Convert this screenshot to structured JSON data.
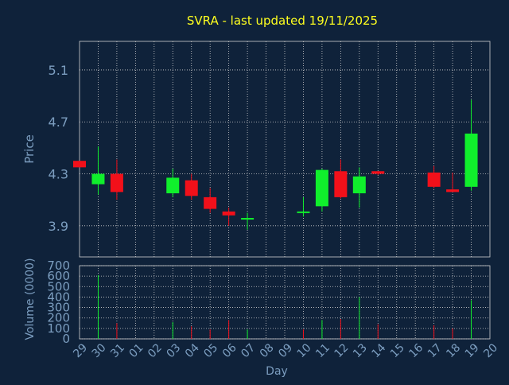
{
  "title": "SVRA - last updated 19/11/2025",
  "colors": {
    "background": "#0f223a",
    "plot_background": "#0f223a",
    "title": "#ffff1f",
    "axis_text": "#7c9ec0",
    "grid": "#d0d0d0",
    "up": "#10ef2c",
    "down": "#f2101a",
    "volume_up": "#10ef2c",
    "volume_down": "#f2101a"
  },
  "chart_data": [
    {
      "type": "candlestick",
      "ylabel": "Price",
      "xlabel": "",
      "ylim": [
        3.66,
        5.32
      ],
      "yticks": [
        3.9,
        4.3,
        4.7,
        5.1
      ],
      "grid": true,
      "categories": [
        "29",
        "30",
        "31",
        "01",
        "02",
        "03",
        "04",
        "05",
        "06",
        "07",
        "08",
        "09",
        "10",
        "11",
        "12",
        "13",
        "14",
        "15",
        "16",
        "17",
        "18",
        "19",
        "20"
      ],
      "candles": [
        {
          "x": "29",
          "open": 4.4,
          "high": 4.4,
          "low": 4.35,
          "close": 4.35
        },
        {
          "x": "30",
          "open": 4.22,
          "high": 4.51,
          "low": 4.14,
          "close": 4.3
        },
        {
          "x": "31",
          "open": 4.3,
          "high": 4.41,
          "low": 4.1,
          "close": 4.16
        },
        {
          "x": "03",
          "open": 4.15,
          "high": 4.34,
          "low": 4.12,
          "close": 4.27
        },
        {
          "x": "04",
          "open": 4.25,
          "high": 4.3,
          "low": 4.1,
          "close": 4.13
        },
        {
          "x": "05",
          "open": 4.12,
          "high": 4.19,
          "low": 4.0,
          "close": 4.03
        },
        {
          "x": "06",
          "open": 4.01,
          "high": 4.04,
          "low": 3.9,
          "close": 3.98
        },
        {
          "x": "07",
          "open": 3.95,
          "high": 4.0,
          "low": 3.87,
          "close": 3.96
        },
        {
          "x": "10",
          "open": 4.01,
          "high": 4.12,
          "low": 3.97,
          "close": 4.01
        },
        {
          "x": "11",
          "open": 4.05,
          "high": 4.34,
          "low": 4.01,
          "close": 4.33
        },
        {
          "x": "12",
          "open": 4.32,
          "high": 4.41,
          "low": 4.11,
          "close": 4.12
        },
        {
          "x": "13",
          "open": 4.15,
          "high": 4.35,
          "low": 4.04,
          "close": 4.28
        },
        {
          "x": "14",
          "open": 4.32,
          "high": 4.32,
          "low": 4.29,
          "close": 4.3
        },
        {
          "x": "17",
          "open": 4.31,
          "high": 4.36,
          "low": 4.19,
          "close": 4.2
        },
        {
          "x": "18",
          "open": 4.18,
          "high": 4.31,
          "low": 4.16,
          "close": 4.16
        },
        {
          "x": "19",
          "open": 4.2,
          "high": 4.87,
          "low": 4.17,
          "close": 4.61
        }
      ]
    },
    {
      "type": "bar",
      "ylabel": "Volume (0000)",
      "xlabel": "Day",
      "ylim": [
        0,
        700
      ],
      "yticks": [
        0,
        100,
        200,
        300,
        400,
        500,
        600,
        700
      ],
      "grid": true,
      "categories": [
        "29",
        "30",
        "31",
        "01",
        "02",
        "03",
        "04",
        "05",
        "06",
        "07",
        "08",
        "09",
        "10",
        "11",
        "12",
        "13",
        "14",
        "15",
        "16",
        "17",
        "18",
        "19",
        "20"
      ],
      "bars": [
        {
          "x": "29",
          "value": 0,
          "dir": "down"
        },
        {
          "x": "30",
          "value": 610,
          "dir": "up"
        },
        {
          "x": "31",
          "value": 150,
          "dir": "down"
        },
        {
          "x": "03",
          "value": 160,
          "dir": "up"
        },
        {
          "x": "04",
          "value": 120,
          "dir": "down"
        },
        {
          "x": "05",
          "value": 90,
          "dir": "down"
        },
        {
          "x": "06",
          "value": 180,
          "dir": "down"
        },
        {
          "x": "07",
          "value": 90,
          "dir": "up"
        },
        {
          "x": "10",
          "value": 90,
          "dir": "down"
        },
        {
          "x": "11",
          "value": 180,
          "dir": "up"
        },
        {
          "x": "12",
          "value": 190,
          "dir": "down"
        },
        {
          "x": "13",
          "value": 400,
          "dir": "up"
        },
        {
          "x": "14",
          "value": 140,
          "dir": "down"
        },
        {
          "x": "17",
          "value": 130,
          "dir": "down"
        },
        {
          "x": "18",
          "value": 100,
          "dir": "down"
        },
        {
          "x": "19",
          "value": 370,
          "dir": "up"
        }
      ]
    }
  ]
}
